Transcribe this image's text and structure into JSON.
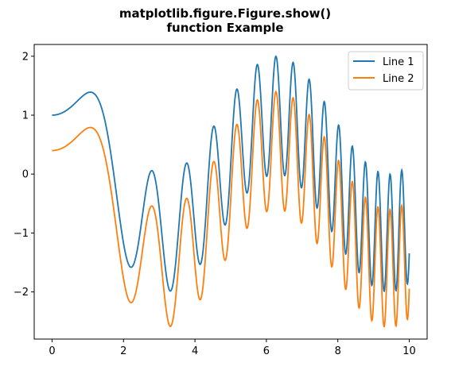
{
  "chart_data": {
    "type": "line",
    "title_lines": [
      "matplotlib.figure.Figure.show()",
      "function Example"
    ],
    "xlabel": "",
    "ylabel": "",
    "xlim": [
      -0.5,
      10.5
    ],
    "ylim": [
      -2.8,
      2.2
    ],
    "xticks": [
      0,
      2,
      4,
      6,
      8,
      10
    ],
    "yticks": [
      -2,
      -1,
      0,
      1,
      2
    ],
    "xtick_labels": [
      "0",
      "2",
      "4",
      "6",
      "8",
      "10"
    ],
    "ytick_labels": [
      "−2",
      "−1",
      "0",
      "1",
      "2"
    ],
    "grid": false,
    "legend_position": "top-right",
    "x": {
      "start": 0,
      "end": 10,
      "count": 1000
    },
    "series": [
      {
        "name": "Line 1",
        "color": "#1f77b4",
        "formula": "sin(x^2) + cos(x)",
        "y_offset": 0
      },
      {
        "name": "Line 2",
        "color": "#ff7f0e",
        "formula": "sin(x^2) + cos(x) - 0.6",
        "y_offset": -0.6
      }
    ]
  }
}
